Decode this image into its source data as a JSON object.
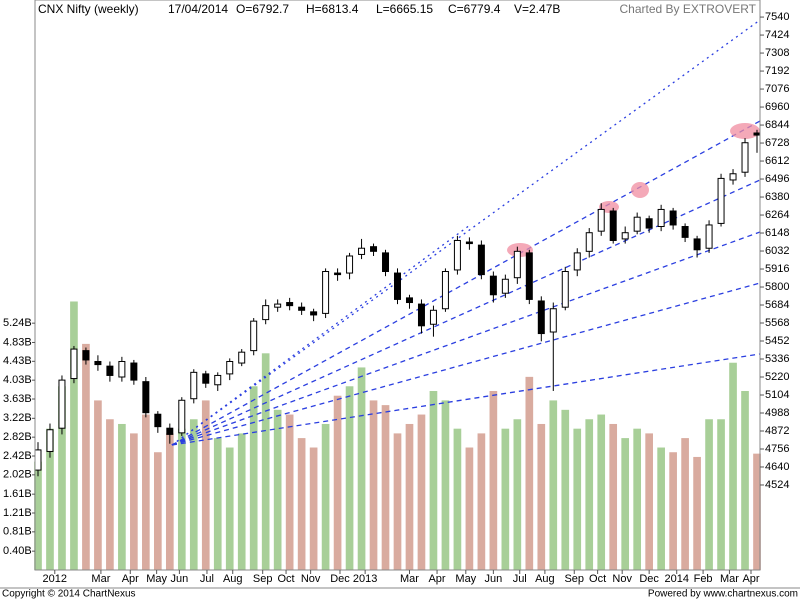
{
  "chart_data": {
    "type": "candlestick",
    "title": "CNX Nifty (weekly)",
    "date": "17/04/2014",
    "quote": [
      "O=6792.7",
      "H=6813.4",
      "L=6665.15",
      "C=6779.4",
      "V=2.47B"
    ],
    "credit": "Charted By EXTROVERT",
    "copyright": "Copyright © 2014 ChartNexus",
    "powered": "Powered by www.chartnexus.com",
    "open": [
      4620,
      4740,
      4890,
      5210,
      5390,
      5320,
      5290,
      5220,
      5310,
      5190,
      4980,
      4890,
      4860,
      5080,
      5240,
      5170,
      5240,
      5310,
      5390,
      5590,
      5670,
      5700,
      5670,
      5640,
      5630,
      5890,
      5890,
      6010,
      6060,
      6020,
      5890,
      5730,
      5690,
      5560,
      5660,
      5910,
      6090,
      6070,
      5870,
      5760,
      5860,
      6020,
      5710,
      5510,
      5670,
      5910,
      6030,
      6160,
      6290,
      6110,
      6160,
      6240,
      6190,
      6290,
      6190,
      6110,
      6050,
      6210,
      6490,
      6540,
      6792.7
    ],
    "high": [
      4800,
      4920,
      5230,
      5420,
      5410,
      5360,
      5320,
      5350,
      5330,
      5220,
      5000,
      4920,
      5090,
      5270,
      5260,
      5250,
      5340,
      5400,
      5600,
      5720,
      5720,
      5730,
      5700,
      5660,
      5920,
      5920,
      6020,
      6110,
      6080,
      6040,
      5920,
      5750,
      5720,
      5680,
      5920,
      6130,
      6120,
      6100,
      5900,
      5880,
      6060,
      6040,
      5740,
      5700,
      5930,
      6050,
      6180,
      6340,
      6310,
      6190,
      6280,
      6260,
      6330,
      6310,
      6210,
      6130,
      6230,
      6530,
      6560,
      6760,
      6813.4
    ],
    "low": [
      4580,
      4700,
      4850,
      5180,
      5300,
      5260,
      5190,
      5190,
      5170,
      4960,
      4860,
      4790,
      4840,
      5050,
      5150,
      5130,
      5200,
      5290,
      5360,
      5560,
      5640,
      5650,
      5620,
      5580,
      5600,
      5840,
      5850,
      5980,
      6000,
      5870,
      5690,
      5660,
      5500,
      5480,
      5640,
      5880,
      6040,
      5850,
      5700,
      5730,
      5820,
      5690,
      5450,
      5130,
      5650,
      5870,
      5990,
      6130,
      6080,
      6080,
      6140,
      6150,
      6160,
      6170,
      6090,
      5990,
      6020,
      6190,
      6460,
      6510,
      6665.15
    ],
    "close": [
      4750,
      4880,
      5200,
      5400,
      5330,
      5300,
      5230,
      5320,
      5200,
      4990,
      4900,
      4850,
      5070,
      5250,
      5180,
      5230,
      5320,
      5380,
      5580,
      5680,
      5690,
      5680,
      5650,
      5620,
      5900,
      5880,
      6000,
      6050,
      6030,
      5900,
      5720,
      5700,
      5550,
      5650,
      5900,
      6100,
      6080,
      5880,
      5750,
      5850,
      6030,
      5720,
      5500,
      5660,
      5900,
      6020,
      6150,
      6300,
      6100,
      6150,
      6250,
      6180,
      6300,
      6200,
      6120,
      6040,
      6200,
      6500,
      6530,
      6730,
      6779.4
    ],
    "volume": [
      2.3,
      3.0,
      3.9,
      5.7,
      4.8,
      3.6,
      3.2,
      3.1,
      2.9,
      3.3,
      2.5,
      2.9,
      3.0,
      3.2,
      3.6,
      2.8,
      2.6,
      2.9,
      3.9,
      4.6,
      3.4,
      3.3,
      2.8,
      2.6,
      3.1,
      3.7,
      3.9,
      4.3,
      3.6,
      3.5,
      2.9,
      3.1,
      3.3,
      3.8,
      3.6,
      3.0,
      2.6,
      2.9,
      3.8,
      3.0,
      3.2,
      4.1,
      3.1,
      3.6,
      3.4,
      3.0,
      3.2,
      3.3,
      3.1,
      2.8,
      3.0,
      2.9,
      2.6,
      2.5,
      2.8,
      2.4,
      3.2,
      3.2,
      4.4,
      3.8,
      2.47
    ],
    "up_volume_color": "#a8cf98",
    "down_volume_color": "#d9ab9f",
    "ylim": [
      3976,
      7650
    ],
    "yticks": [
      7540,
      7424,
      7308,
      7192,
      7076,
      6960,
      6844,
      6728,
      6612,
      6496,
      6380,
      6264,
      6148,
      6032,
      5916,
      5800,
      5684,
      5568,
      5452,
      5336,
      5220,
      5104,
      4988,
      4872,
      4756,
      4640,
      4524
    ],
    "y2lim": [
      0,
      12.1
    ],
    "y2ticks": [
      {
        "value": 5.24,
        "label": "5.24B"
      },
      {
        "value": 4.83,
        "label": "4.83B"
      },
      {
        "value": 4.43,
        "label": "4.43B"
      },
      {
        "value": 4.03,
        "label": "4.03B"
      },
      {
        "value": 3.63,
        "label": "3.63B"
      },
      {
        "value": 3.22,
        "label": "3.22B"
      },
      {
        "value": 2.82,
        "label": "2.82B"
      },
      {
        "value": 2.42,
        "label": "2.42B"
      },
      {
        "value": 2.02,
        "label": "2.02B"
      },
      {
        "value": 1.61,
        "label": "1.61B"
      },
      {
        "value": 1.21,
        "label": "1.21B"
      },
      {
        "value": 0.81,
        "label": "0.81B"
      },
      {
        "value": 0.4,
        "label": "0.40B"
      }
    ],
    "xlim": [
      -0.25,
      60.25
    ],
    "xticks": [
      {
        "value": 1.4,
        "label": "2012"
      },
      {
        "value": 5.25,
        "label": "Mar"
      },
      {
        "value": 7.7,
        "label": "Apr"
      },
      {
        "value": 9.9,
        "label": "May"
      },
      {
        "value": 11.8,
        "label": "Jun"
      },
      {
        "value": 14.1,
        "label": "Jul"
      },
      {
        "value": 16.25,
        "label": "Aug"
      },
      {
        "value": 18.75,
        "label": "Sep"
      },
      {
        "value": 20.7,
        "label": "Oct"
      },
      {
        "value": 22.75,
        "label": "Nov"
      },
      {
        "value": 25.2,
        "label": "Dec"
      },
      {
        "value": 27.3,
        "label": "2013"
      },
      {
        "value": 31,
        "label": "Mar"
      },
      {
        "value": 33.3,
        "label": "Apr"
      },
      {
        "value": 35.7,
        "label": "May"
      },
      {
        "value": 38,
        "label": "Jun"
      },
      {
        "value": 40.2,
        "label": "Jul"
      },
      {
        "value": 42.3,
        "label": "Aug"
      },
      {
        "value": 44.75,
        "label": "Sep"
      },
      {
        "value": 46.7,
        "label": "Oct"
      },
      {
        "value": 48.75,
        "label": "Nov"
      },
      {
        "value": 51,
        "label": "Dec"
      },
      {
        "value": 53.3,
        "label": "2014"
      },
      {
        "value": 55.5,
        "label": "Feb"
      },
      {
        "value": 57.7,
        "label": "Mar"
      },
      {
        "value": 59.5,
        "label": "Apr"
      }
    ]
  }
}
